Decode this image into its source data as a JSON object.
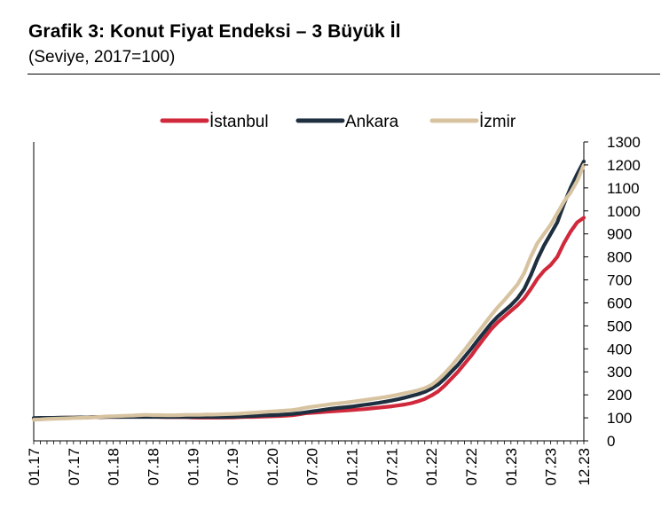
{
  "header": {
    "title": "Grafik 3: Konut Fiyat Endeksi – 3 Büyük İl",
    "subtitle": "(Seviye, 2017=100)"
  },
  "chart_data": {
    "type": "line",
    "title": "Grafik 3: Konut Fiyat Endeksi – 3 Büyük İl",
    "subtitle": "(Seviye, 2017=100)",
    "xlabel": "",
    "ylabel": "",
    "ylim": [
      0,
      1300
    ],
    "yticks": [
      0,
      100,
      200,
      300,
      400,
      500,
      600,
      700,
      800,
      900,
      1000,
      1100,
      1200,
      1300
    ],
    "y_axis_position": "right",
    "grid": false,
    "legend_position": "top",
    "x": [
      "01.17",
      "02.17",
      "03.17",
      "04.17",
      "05.17",
      "06.17",
      "07.17",
      "08.17",
      "09.17",
      "10.17",
      "11.17",
      "12.17",
      "01.18",
      "02.18",
      "03.18",
      "04.18",
      "05.18",
      "06.18",
      "07.18",
      "08.18",
      "09.18",
      "10.18",
      "11.18",
      "12.18",
      "01.19",
      "02.19",
      "03.19",
      "04.19",
      "05.19",
      "06.19",
      "07.19",
      "08.19",
      "09.19",
      "10.19",
      "11.19",
      "12.19",
      "01.20",
      "02.20",
      "03.20",
      "04.20",
      "05.20",
      "06.20",
      "07.20",
      "08.20",
      "09.20",
      "10.20",
      "11.20",
      "12.20",
      "01.21",
      "02.21",
      "03.21",
      "04.21",
      "05.21",
      "06.21",
      "07.21",
      "08.21",
      "09.21",
      "10.21",
      "11.21",
      "12.21",
      "01.22",
      "02.22",
      "03.22",
      "04.22",
      "05.22",
      "06.22",
      "07.22",
      "08.22",
      "09.22",
      "10.22",
      "11.22",
      "12.22",
      "01.23",
      "02.23",
      "03.23",
      "04.23",
      "05.23",
      "06.23",
      "07.23",
      "08.23",
      "09.23",
      "10.23",
      "11.23",
      "12.23"
    ],
    "x_tick_labels": [
      "01.17",
      "07.17",
      "01.18",
      "07.18",
      "01.19",
      "07.19",
      "01.20",
      "07.20",
      "01.21",
      "07.21",
      "01.22",
      "07.22",
      "01.23",
      "07.23",
      "12.23"
    ],
    "series": [
      {
        "name": "İstanbul",
        "color": "#d0293b",
        "values": [
          97,
          98,
          99,
          100,
          100,
          101,
          101,
          101,
          102,
          103,
          103,
          104,
          104,
          104,
          105,
          105,
          105,
          105,
          105,
          104,
          103,
          103,
          103,
          103,
          102,
          101,
          101,
          101,
          101,
          102,
          102,
          103,
          104,
          104,
          105,
          106,
          107,
          108,
          109,
          111,
          115,
          120,
          122,
          124,
          126,
          128,
          130,
          132,
          134,
          136,
          138,
          141,
          144,
          147,
          150,
          154,
          158,
          164,
          172,
          182,
          197,
          215,
          240,
          270,
          300,
          335,
          370,
          410,
          448,
          485,
          515,
          540,
          565,
          590,
          620,
          660,
          705,
          740,
          765,
          800,
          860,
          910,
          950,
          970
        ]
      },
      {
        "name": "Ankara",
        "color": "#1e2f40",
        "values": [
          99,
          100,
          100,
          100,
          101,
          101,
          101,
          102,
          102,
          103,
          103,
          104,
          104,
          104,
          104,
          104,
          104,
          104,
          104,
          104,
          104,
          104,
          104,
          104,
          104,
          104,
          104,
          104,
          104,
          104,
          105,
          106,
          107,
          108,
          110,
          111,
          112,
          113,
          115,
          117,
          120,
          124,
          128,
          132,
          136,
          140,
          143,
          146,
          149,
          153,
          157,
          161,
          165,
          170,
          175,
          181,
          188,
          195,
          203,
          213,
          227,
          245,
          270,
          300,
          330,
          365,
          400,
          438,
          474,
          510,
          540,
          565,
          590,
          620,
          660,
          720,
          790,
          850,
          900,
          950,
          1030,
          1100,
          1160,
          1215
        ]
      },
      {
        "name": "İzmir",
        "color": "#d8c3a0",
        "values": [
          92,
          93,
          95,
          96,
          97,
          98,
          99,
          100,
          101,
          102,
          104,
          106,
          107,
          108,
          109,
          110,
          112,
          113,
          112,
          112,
          111,
          111,
          112,
          113,
          113,
          113,
          114,
          114,
          115,
          116,
          117,
          118,
          120,
          122,
          124,
          126,
          128,
          130,
          132,
          134,
          138,
          144,
          148,
          152,
          156,
          160,
          163,
          166,
          170,
          174,
          178,
          182,
          186,
          190,
          195,
          201,
          207,
          213,
          220,
          229,
          243,
          265,
          293,
          325,
          360,
          395,
          433,
          470,
          508,
          545,
          580,
          612,
          645,
          680,
          730,
          800,
          860,
          900,
          940,
          990,
          1040,
          1080,
          1130,
          1200
        ]
      }
    ]
  }
}
